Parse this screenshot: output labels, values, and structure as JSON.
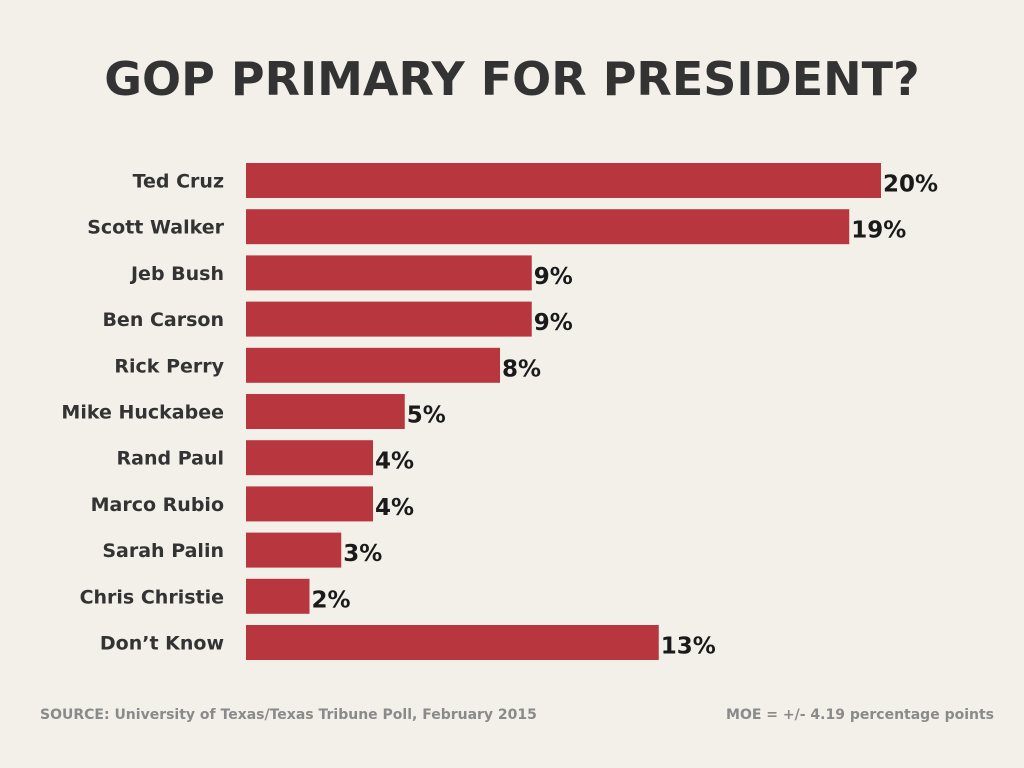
{
  "chart_data": {
    "type": "bar",
    "orientation": "horizontal",
    "title": "GOP PRIMARY FOR PRESIDENT?",
    "categories": [
      "Ted Cruz",
      "Scott Walker",
      "Jeb Bush",
      "Ben Carson",
      "Rick Perry",
      "Mike Huckabee",
      "Rand Paul",
      "Marco Rubio",
      "Sarah Palin",
      "Chris Christie",
      "Don’t Know"
    ],
    "values": [
      20,
      19,
      9,
      9,
      8,
      5,
      4,
      4,
      3,
      2,
      13
    ],
    "value_labels": [
      "20%",
      "19%",
      "9%",
      "9%",
      "8%",
      "5%",
      "4%",
      "4%",
      "3%",
      "2%",
      "13%"
    ],
    "unit": "%",
    "xlabel": "",
    "ylabel": "",
    "xlim": [
      0,
      20
    ],
    "grid": false,
    "legend": "none",
    "bar_color": "#b8373e"
  },
  "footer": {
    "source": "SOURCE: University of Texas/Texas Tribune Poll, February 2015",
    "moe": "MOE = +/- 4.19 percentage points"
  }
}
